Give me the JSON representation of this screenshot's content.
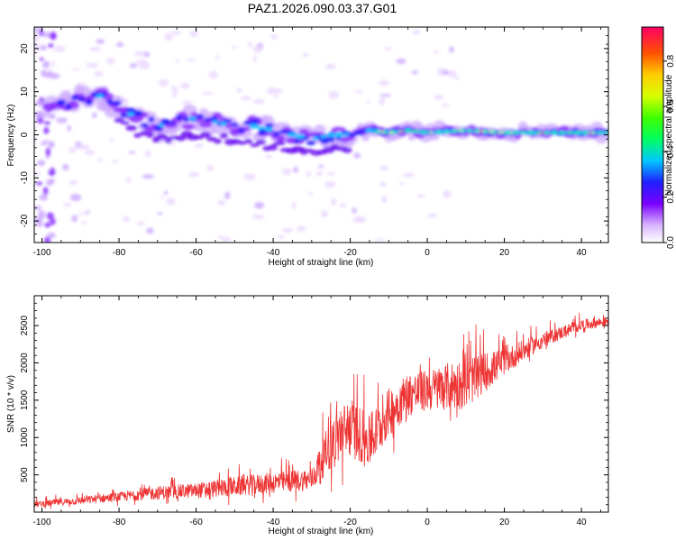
{
  "title": "PAZ1.2026.090.03.37.G01",
  "chart_data": [
    {
      "type": "heatmap",
      "name": "spectrogram",
      "xlabel": "Height of straight line (km)",
      "ylabel": "Frequency (Hz)",
      "xlim": [
        -102,
        47
      ],
      "ylim": [
        -25,
        25
      ],
      "xticks": [
        -100,
        -80,
        -60,
        -40,
        -20,
        0,
        20,
        40
      ],
      "xtick_labels": [
        "-100",
        "-80",
        "-60",
        "-40",
        "-20",
        "0",
        "20",
        "40"
      ],
      "yticks": [
        -20,
        -10,
        0,
        10,
        20
      ],
      "ytick_labels": [
        "-20",
        "-10",
        "0",
        "10",
        "20"
      ],
      "ridge": {
        "x": [
          -100,
          -90,
          -85,
          -80,
          -75,
          -70,
          -65,
          -60,
          -55,
          -50,
          -45,
          -40,
          -35,
          -30,
          -25,
          -20,
          -15,
          -10,
          -5,
          0,
          10,
          20,
          30,
          47
        ],
        "y": [
          7,
          8,
          9,
          6,
          4,
          2,
          3,
          4,
          3,
          2,
          2,
          1,
          0,
          -1,
          0,
          0,
          1,
          0.5,
          1,
          0.5,
          1,
          0.5,
          0.5,
          0.5
        ]
      },
      "colorbar": {
        "label": "Normalized spectral amplitude",
        "range": [
          0,
          0.95
        ],
        "ticks": [
          0.0,
          0.2,
          0.4,
          0.6,
          0.8
        ],
        "tick_labels": [
          "0.0",
          "0.2",
          "0.4",
          "0.6",
          "0.8"
        ]
      }
    },
    {
      "type": "line",
      "name": "snr",
      "xlabel": "Height of straight line (km)",
      "ylabel": "SNR (10 * v/v)",
      "xlim": [
        -102,
        47
      ],
      "ylim": [
        0,
        2900
      ],
      "xticks": [
        -100,
        -80,
        -60,
        -40,
        -20,
        0,
        20,
        40
      ],
      "xtick_labels": [
        "-100",
        "-80",
        "-60",
        "-40",
        "-20",
        "0",
        "20",
        "40"
      ],
      "yticks": [
        500,
        1000,
        1500,
        2000,
        2500
      ],
      "ytick_labels": [
        "500",
        "1000",
        "1500",
        "2000",
        "2500"
      ],
      "series": [
        {
          "name": "SNR",
          "color": "#ee3333",
          "trend_x": [
            -102,
            -90,
            -80,
            -70,
            -60,
            -50,
            -40,
            -30,
            -25,
            -20,
            -15,
            -10,
            -5,
            0,
            10,
            20,
            30,
            40,
            47
          ],
          "trend_y": [
            100,
            150,
            200,
            250,
            280,
            330,
            380,
            420,
            900,
            1100,
            900,
            1300,
            1550,
            1600,
            1700,
            2000,
            2300,
            2500,
            2550
          ],
          "spread": [
            80,
            100,
            120,
            180,
            200,
            260,
            280,
            300,
            700,
            800,
            700,
            650,
            600,
            550,
            700,
            350,
            200,
            150,
            120
          ]
        }
      ]
    }
  ]
}
